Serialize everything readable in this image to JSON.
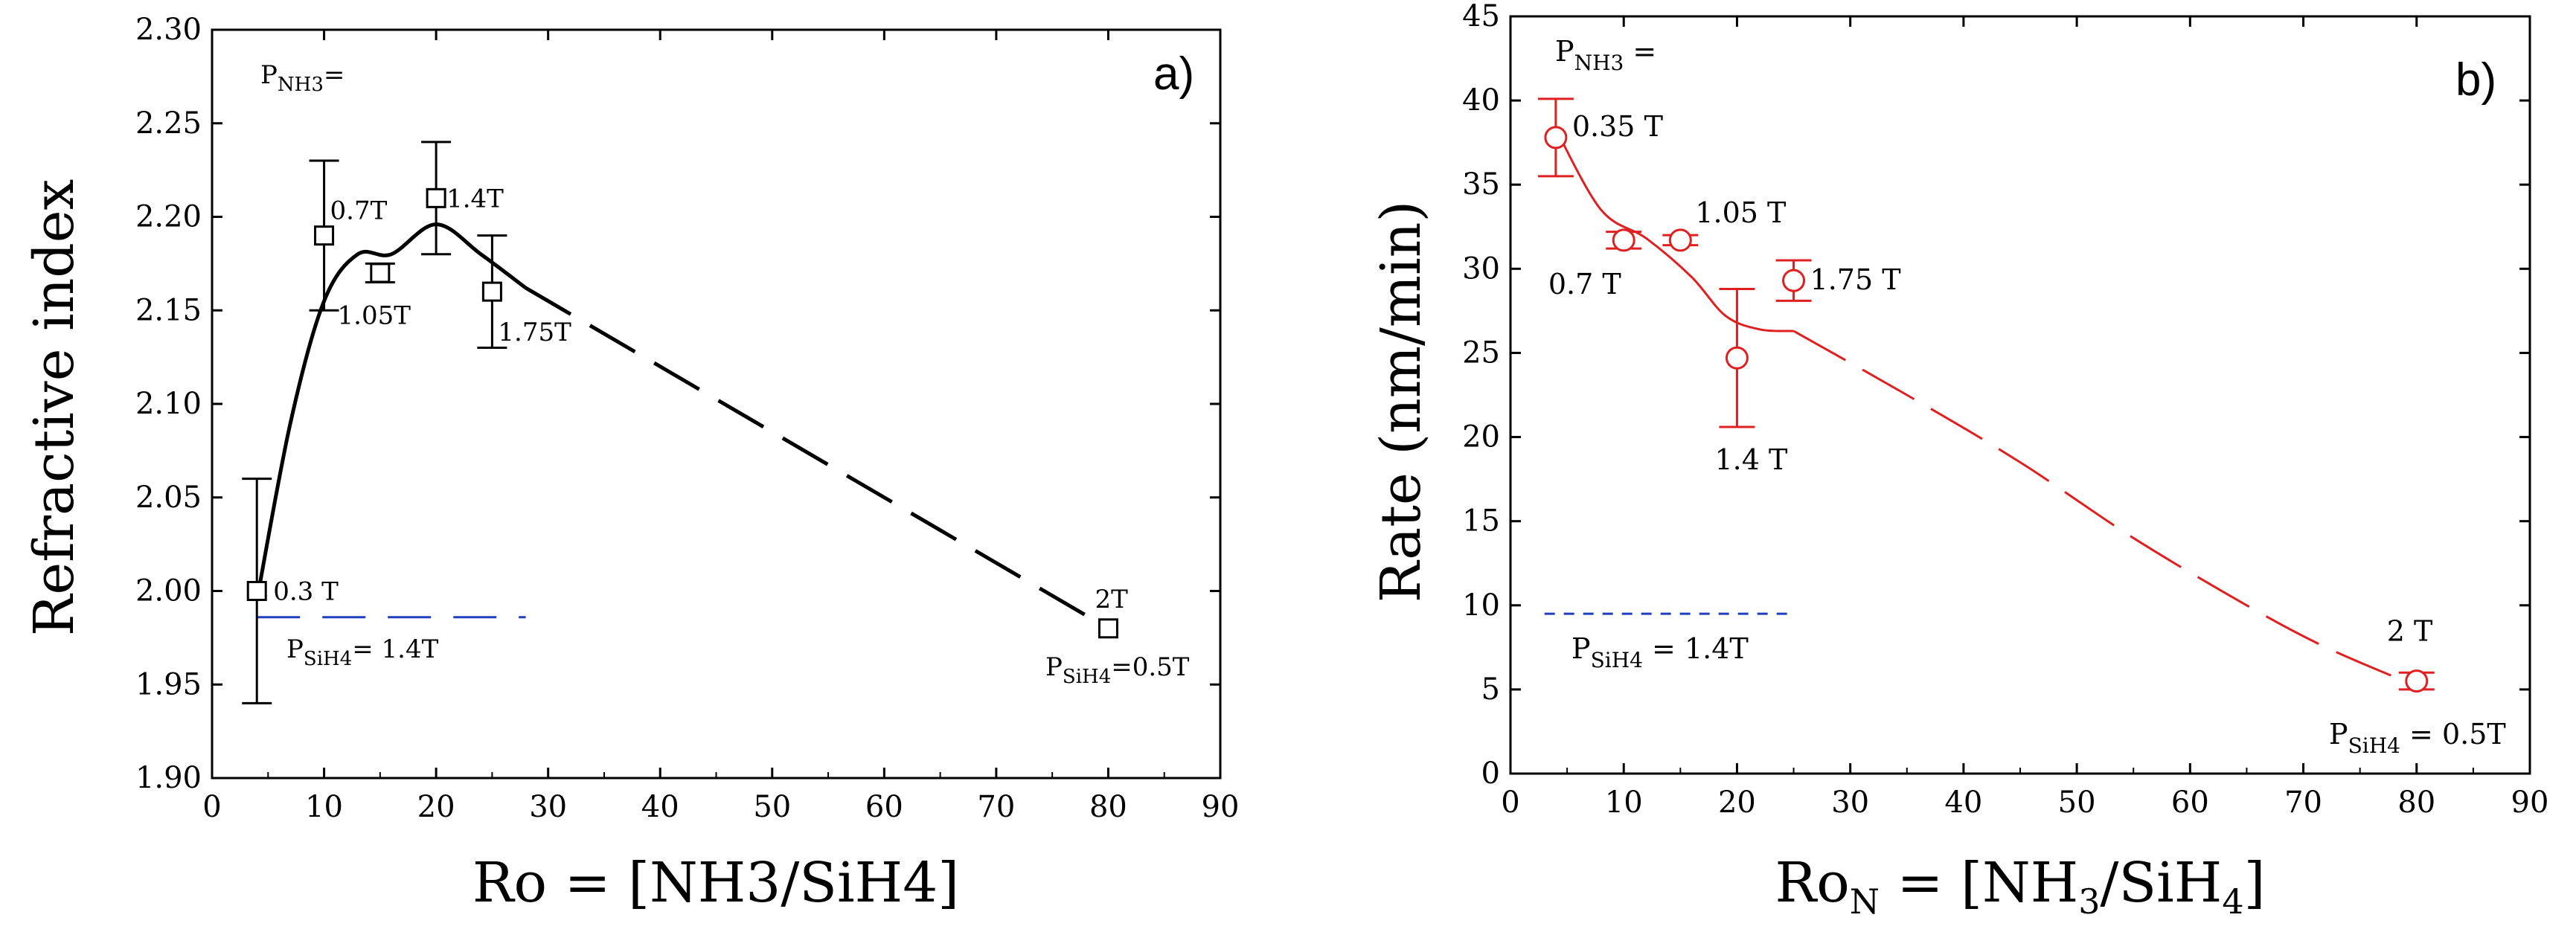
{
  "chart_data": [
    {
      "type": "scatter",
      "panel_label": "a)",
      "xlabel": "Ro = [NH3/SiH4]",
      "ylabel": "Refractive index",
      "xlim": [
        0,
        90
      ],
      "ylim": [
        1.9,
        2.3
      ],
      "xticks": [
        "0",
        "10",
        "20",
        "30",
        "40",
        "50",
        "60",
        "70",
        "80",
        "90"
      ],
      "yticks": [
        "1.90",
        "1.95",
        "2.00",
        "2.05",
        "2.10",
        "2.15",
        "2.20",
        "2.25",
        "2.30"
      ],
      "series": [
        {
          "name": "Refractive index",
          "marker": "square",
          "color": "#000000",
          "points": [
            {
              "x": 4,
              "y": 2.0,
              "err": 0.06,
              "label": "0.3 T"
            },
            {
              "x": 10,
              "y": 2.19,
              "err": 0.04,
              "label": "0.7T"
            },
            {
              "x": 15,
              "y": 2.17,
              "err": 0.005,
              "label": "1.05T"
            },
            {
              "x": 20,
              "y": 2.21,
              "err": 0.03,
              "label": "1.4T"
            },
            {
              "x": 25,
              "y": 2.16,
              "err": 0.03,
              "label": "1.75T"
            },
            {
              "x": 80,
              "y": 1.98,
              "err": 0,
              "label": "2T"
            }
          ]
        }
      ],
      "fit_curve": {
        "solid_to_x": 28,
        "dashed_to_x": 80,
        "color": "#000000"
      },
      "reference_line": {
        "y": 1.986,
        "x_from": 4,
        "x_to": 28,
        "color": "#1f3fbf"
      },
      "annotations": {
        "pnh3": {
          "main": "P",
          "sub": "NH3",
          "rest": "="
        },
        "psih4_low": {
          "main": "P",
          "sub": "SiH4",
          "rest": "= 1.4T"
        },
        "psih4_high": {
          "main": "P",
          "sub": "SiH4",
          "rest": "=0.5T"
        }
      }
    },
    {
      "type": "scatter",
      "panel_label": "b)",
      "xlabel": "RoN = [NH3/SiH4]",
      "ylabel": "Rate (nm/min)",
      "xlim": [
        0,
        90
      ],
      "ylim": [
        0,
        45
      ],
      "xticks": [
        "0",
        "10",
        "20",
        "30",
        "40",
        "50",
        "60",
        "70",
        "80",
        "90"
      ],
      "yticks": [
        "0",
        "5",
        "10",
        "15",
        "20",
        "25",
        "30",
        "35",
        "40",
        "45"
      ],
      "series": [
        {
          "name": "Rate",
          "marker": "circle",
          "color": "#e02020",
          "points": [
            {
              "x": 4,
              "y": 37.8,
              "err": 2.3,
              "label": "0.35 T"
            },
            {
              "x": 10,
              "y": 31.7,
              "err": 0.5,
              "label": "0.7 T"
            },
            {
              "x": 15,
              "y": 31.7,
              "err": 0.3,
              "label": "1.05 T"
            },
            {
              "x": 20,
              "y": 24.7,
              "err": 4.1,
              "label": "1.4 T"
            },
            {
              "x": 25,
              "y": 29.3,
              "err": 1.2,
              "label": "1.75 T"
            },
            {
              "x": 80,
              "y": 5.5,
              "err": 0.5,
              "label": "2 T"
            }
          ]
        }
      ],
      "fit_curve": {
        "solid_to_x": 25,
        "dashed_to_x": 80,
        "color": "#e02020"
      },
      "reference_line": {
        "y": 9.5,
        "x_from": 3,
        "x_to": 25,
        "color": "#1f3fbf"
      },
      "annotations": {
        "pnh3": {
          "main": "P",
          "sub": "NH3",
          "rest": " ="
        },
        "psih4_low": {
          "main": "P",
          "sub": "SiH4",
          "rest": " = 1.4T"
        },
        "psih4_high": {
          "main": "P",
          "sub": "SiH4",
          "rest": " = 0.5T"
        }
      }
    }
  ],
  "axis_title_parts": {
    "a_x": "Ro = [NH3/SiH4]",
    "b_x_ro": "Ro",
    "b_x_ro_sub": "N",
    "b_x_eq": " = [NH",
    "b_x_3": "3",
    "b_x_mid": "/SiH",
    "b_x_4": "4",
    "b_x_end": "]"
  }
}
